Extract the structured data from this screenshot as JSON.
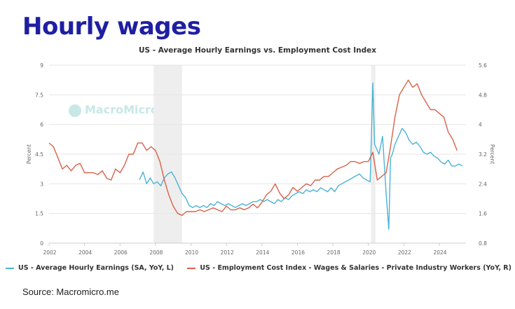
{
  "slide": {
    "title": "Hourly wages",
    "source": "Source: Macromicro.me",
    "watermark": "MacroMicro"
  },
  "colors": {
    "hourly": "#4bb3d5",
    "eci": "#d9614a",
    "recession": "#eeeeee",
    "title": "#1f1fa3"
  },
  "chart_data": {
    "type": "line",
    "title": "US - Average Hourly Earnings vs. Employment Cost Index",
    "xlabel": "",
    "ylabel_left": "Percent",
    "ylabel_right": "Percent",
    "xlim": [
      2002,
      2025.5
    ],
    "ylim_left": [
      0,
      9
    ],
    "ylim_right": [
      0.8,
      5.6
    ],
    "x_ticks": [
      "2002",
      "2004",
      "2006",
      "2008",
      "2010",
      "2012",
      "2014",
      "2016",
      "2018",
      "2020",
      "2022",
      "2024"
    ],
    "y_left_ticks": [
      "0",
      "1.5",
      "3",
      "4.5",
      "6",
      "7.5",
      "9"
    ],
    "y_right_ticks": [
      "0.8",
      "1.6",
      "2.4",
      "3.2",
      "4",
      "4.8",
      "5.6"
    ],
    "grid": true,
    "legend_position": "bottom",
    "shaded_periods": [
      [
        2007.9,
        2009.5
      ],
      [
        2020.15,
        2020.4
      ]
    ],
    "series": [
      {
        "name": "US - Average Hourly Earnings (SA, YoY, L)",
        "axis": "left",
        "x": [
          2007.1,
          2007.3,
          2007.5,
          2007.7,
          2007.9,
          2008.1,
          2008.3,
          2008.5,
          2008.7,
          2008.9,
          2009.1,
          2009.3,
          2009.5,
          2009.7,
          2009.9,
          2010.1,
          2010.3,
          2010.5,
          2010.7,
          2010.9,
          2011.1,
          2011.3,
          2011.5,
          2011.7,
          2011.9,
          2012.1,
          2012.3,
          2012.5,
          2012.7,
          2012.9,
          2013.1,
          2013.3,
          2013.5,
          2013.7,
          2013.9,
          2014.1,
          2014.3,
          2014.5,
          2014.7,
          2014.9,
          2015.1,
          2015.3,
          2015.5,
          2015.7,
          2015.9,
          2016.1,
          2016.3,
          2016.5,
          2016.7,
          2016.9,
          2017.1,
          2017.3,
          2017.5,
          2017.7,
          2017.9,
          2018.1,
          2018.3,
          2018.5,
          2018.7,
          2018.9,
          2019.1,
          2019.3,
          2019.5,
          2019.7,
          2019.9,
          2020.1,
          2020.25,
          2020.35,
          2020.45,
          2020.6,
          2020.8,
          2021.0,
          2021.15,
          2021.25,
          2021.35,
          2021.5,
          2021.7,
          2021.9,
          2022.1,
          2022.3,
          2022.5,
          2022.7,
          2022.9,
          2023.1,
          2023.3,
          2023.5,
          2023.7,
          2023.9,
          2024.1,
          2024.3,
          2024.5,
          2024.7,
          2024.9,
          2025.1,
          2025.3
        ],
        "values": [
          3.2,
          3.6,
          3.0,
          3.3,
          3.0,
          3.1,
          2.9,
          3.3,
          3.5,
          3.6,
          3.3,
          2.9,
          2.5,
          2.3,
          1.9,
          1.8,
          1.9,
          1.8,
          1.9,
          1.8,
          2.0,
          1.9,
          2.1,
          2.0,
          1.9,
          2.0,
          1.9,
          1.8,
          1.9,
          2.0,
          1.9,
          2.0,
          2.1,
          2.1,
          2.2,
          2.1,
          2.2,
          2.1,
          2.0,
          2.2,
          2.1,
          2.3,
          2.2,
          2.4,
          2.5,
          2.6,
          2.5,
          2.7,
          2.6,
          2.7,
          2.6,
          2.8,
          2.7,
          2.6,
          2.8,
          2.6,
          2.9,
          3.0,
          3.1,
          3.2,
          3.3,
          3.4,
          3.5,
          3.3,
          3.2,
          3.1,
          8.1,
          5.0,
          4.8,
          4.5,
          5.4,
          2.5,
          0.7,
          4.3,
          4.5,
          5.0,
          5.4,
          5.8,
          5.6,
          5.2,
          5.0,
          5.1,
          4.9,
          4.6,
          4.5,
          4.6,
          4.4,
          4.3,
          4.1,
          4.0,
          4.2,
          3.9,
          3.9,
          4.0,
          3.9
        ]
      },
      {
        "name": "US - Employment Cost Index - Wages & Salaries - Private Industry Workers (YoY, R)",
        "axis": "right",
        "x": [
          2002.0,
          2002.25,
          2002.5,
          2002.75,
          2003.0,
          2003.25,
          2003.5,
          2003.75,
          2004.0,
          2004.25,
          2004.5,
          2004.75,
          2005.0,
          2005.25,
          2005.5,
          2005.75,
          2006.0,
          2006.25,
          2006.5,
          2006.75,
          2007.0,
          2007.25,
          2007.5,
          2007.75,
          2008.0,
          2008.25,
          2008.5,
          2008.75,
          2009.0,
          2009.25,
          2009.5,
          2009.75,
          2010.0,
          2010.25,
          2010.5,
          2010.75,
          2011.0,
          2011.25,
          2011.5,
          2011.75,
          2012.0,
          2012.25,
          2012.5,
          2012.75,
          2013.0,
          2013.25,
          2013.5,
          2013.75,
          2014.0,
          2014.25,
          2014.5,
          2014.75,
          2015.0,
          2015.25,
          2015.5,
          2015.75,
          2016.0,
          2016.25,
          2016.5,
          2016.75,
          2017.0,
          2017.25,
          2017.5,
          2017.75,
          2018.0,
          2018.25,
          2018.5,
          2018.75,
          2019.0,
          2019.25,
          2019.5,
          2019.75,
          2020.0,
          2020.25,
          2020.5,
          2020.75,
          2021.0,
          2021.25,
          2021.5,
          2021.75,
          2022.0,
          2022.25,
          2022.5,
          2022.75,
          2023.0,
          2023.25,
          2023.5,
          2023.75,
          2024.0,
          2024.25,
          2024.5,
          2024.75,
          2025.0
        ],
        "values": [
          3.5,
          3.4,
          3.1,
          2.8,
          2.9,
          2.75,
          2.9,
          2.95,
          2.7,
          2.7,
          2.7,
          2.65,
          2.75,
          2.55,
          2.5,
          2.8,
          2.7,
          2.9,
          3.2,
          3.2,
          3.5,
          3.5,
          3.3,
          3.4,
          3.3,
          3.0,
          2.5,
          2.1,
          1.8,
          1.6,
          1.55,
          1.65,
          1.65,
          1.65,
          1.7,
          1.65,
          1.7,
          1.75,
          1.7,
          1.65,
          1.8,
          1.7,
          1.7,
          1.75,
          1.7,
          1.75,
          1.85,
          1.75,
          1.9,
          2.1,
          2.2,
          2.4,
          2.15,
          2.0,
          2.1,
          2.3,
          2.2,
          2.3,
          2.4,
          2.35,
          2.5,
          2.5,
          2.6,
          2.6,
          2.7,
          2.8,
          2.85,
          2.9,
          3.0,
          3.0,
          2.95,
          3.0,
          3.0,
          3.25,
          2.5,
          2.6,
          2.7,
          3.4,
          4.2,
          4.8,
          5.0,
          5.2,
          5.0,
          5.1,
          4.8,
          4.6,
          4.4,
          4.4,
          4.3,
          4.2,
          3.8,
          3.6,
          3.3
        ]
      }
    ]
  }
}
